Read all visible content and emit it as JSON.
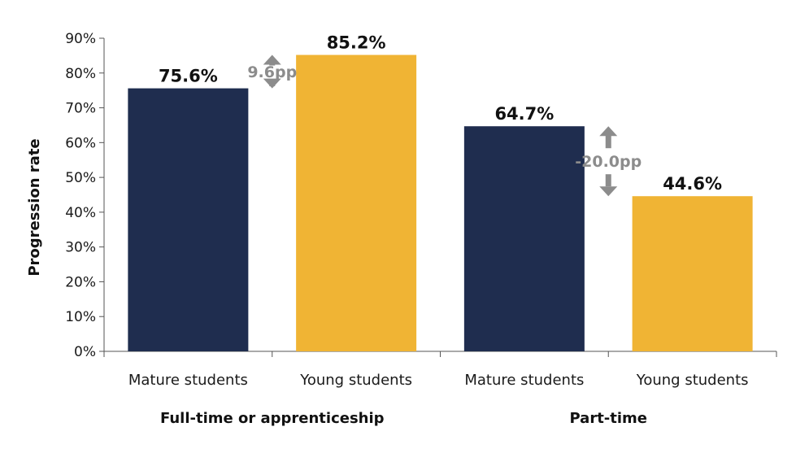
{
  "chart_data": {
    "type": "bar",
    "ylabel": "Progression rate",
    "ylim": [
      0,
      90
    ],
    "yticks": [
      "0%",
      "10%",
      "20%",
      "30%",
      "40%",
      "50%",
      "60%",
      "70%",
      "80%",
      "90%"
    ],
    "groups": [
      {
        "label": "Full-time or apprenticeship",
        "bars": [
          {
            "category": "Mature students",
            "value": 75.6,
            "label": "75.6%",
            "color": "#1f2d4f"
          },
          {
            "category": "Young students",
            "value": 85.2,
            "label": "85.2%",
            "color": "#f0b434"
          }
        ],
        "gap_label": "9.6pp"
      },
      {
        "label": "Part-time",
        "bars": [
          {
            "category": "Mature students",
            "value": 64.7,
            "label": "64.7%",
            "color": "#1f2d4f"
          },
          {
            "category": "Young students",
            "value": 44.6,
            "label": "44.6%",
            "color": "#f0b434"
          }
        ],
        "gap_label": "-20.0pp"
      }
    ],
    "colors": {
      "mature": "#1f2d4f",
      "young": "#f0b434",
      "arrow": "#8c8c8c",
      "axis": "#555555"
    },
    "grid": false,
    "legend": "none"
  }
}
